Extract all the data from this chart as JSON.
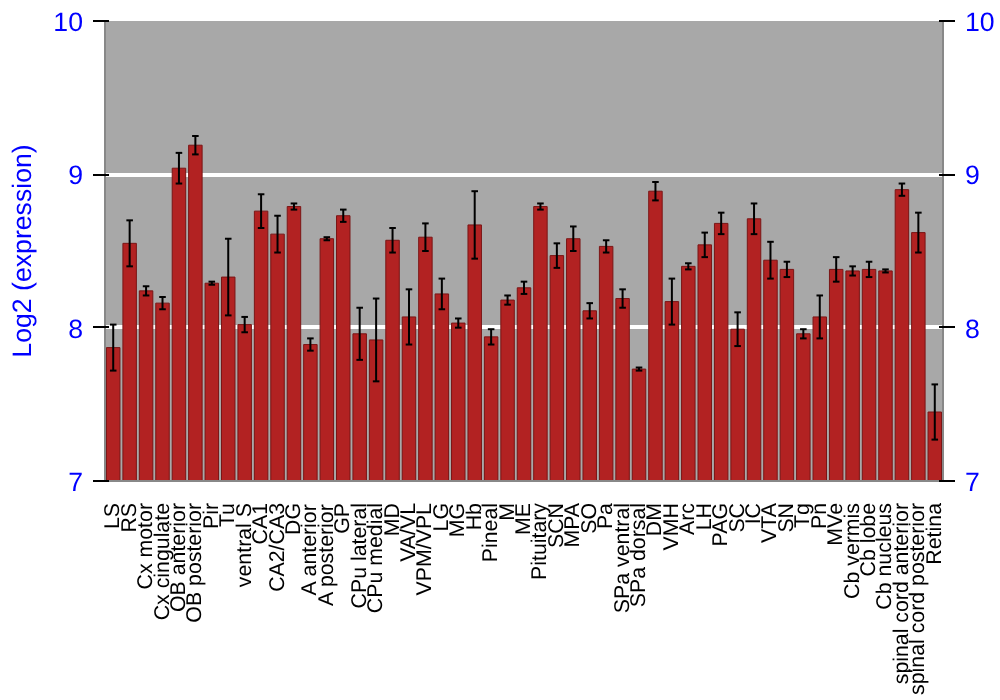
{
  "chart_data": {
    "type": "bar",
    "ylabel": "Log2 (expression)",
    "categories": [
      "LS",
      "RS",
      "Cx motor",
      "Cx cingulate",
      "OB anterior",
      "OB posterior",
      "Pir",
      "Tu",
      "ventral S",
      "CA1",
      "CA2/CA3",
      "DG",
      "A anterior",
      "A posterior",
      "GP",
      "CPu lateral",
      "CPu medial",
      "MD",
      "VA/VL",
      "VPM/VPL",
      "LG",
      "MG",
      "Hb",
      "Pineal",
      "M",
      "ME",
      "Pituitary",
      "SCN",
      "MPA",
      "SO",
      "Pa",
      "SPa ventral",
      "SPa dorsal",
      "DM",
      "VMH",
      "Arc",
      "LH",
      "PAG",
      "SC",
      "IC",
      "VTA",
      "SN",
      "Tg",
      "Pn",
      "MVe",
      "Cb vermis",
      "Cb lobe",
      "Cb nucleus",
      "spinal cord anterior",
      "spinal cord posterior",
      "Retina"
    ],
    "series": [
      {
        "color": "#b22222",
        "values": [
          7.87,
          8.55,
          8.24,
          8.16,
          9.04,
          9.19,
          8.29,
          8.33,
          8.02,
          8.76,
          8.61,
          8.79,
          7.89,
          8.58,
          8.73,
          7.96,
          7.92,
          8.57,
          8.07,
          8.59,
          8.22,
          8.03,
          8.67,
          7.94,
          8.18,
          8.26,
          8.79,
          8.47,
          8.58,
          8.11,
          8.53,
          8.19,
          7.73,
          8.89,
          8.17,
          8.4,
          8.54,
          8.68,
          7.99,
          8.71,
          8.44,
          8.38,
          7.96,
          8.07,
          8.38,
          8.37,
          8.38,
          8.37,
          8.9,
          8.62,
          7.45
        ],
        "errors": [
          0.15,
          0.15,
          0.03,
          0.04,
          0.1,
          0.06,
          0.01,
          0.25,
          0.05,
          0.11,
          0.12,
          0.02,
          0.04,
          0.01,
          0.04,
          0.17,
          0.27,
          0.08,
          0.18,
          0.09,
          0.1,
          0.03,
          0.22,
          0.05,
          0.03,
          0.04,
          0.02,
          0.08,
          0.08,
          0.05,
          0.04,
          0.06,
          0.01,
          0.06,
          0.15,
          0.02,
          0.08,
          0.07,
          0.11,
          0.1,
          0.12,
          0.05,
          0.03,
          0.14,
          0.08,
          0.03,
          0.05,
          0.01,
          0.04,
          0.13,
          0.18
        ]
      }
    ],
    "ylim": [
      7,
      10
    ],
    "yticks": [
      7,
      8,
      9,
      10
    ],
    "y2lim": [
      7,
      10
    ],
    "y2ticks": [
      7,
      8,
      9,
      10
    ],
    "grid": "y"
  }
}
